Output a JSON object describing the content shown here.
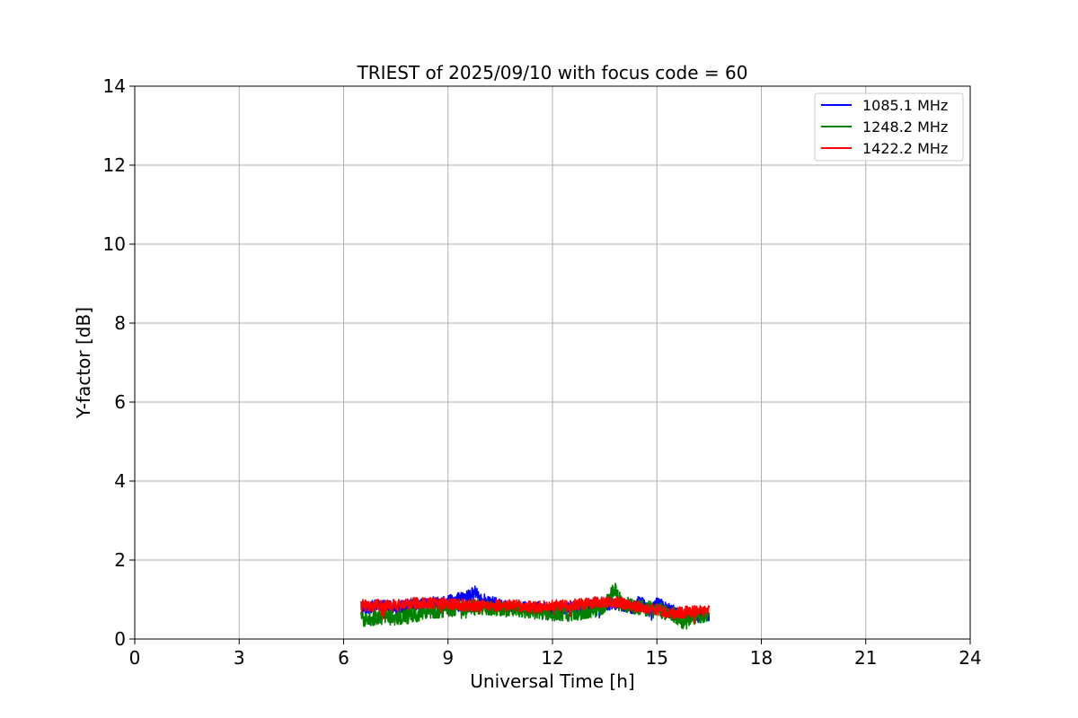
{
  "chart_data": {
    "type": "line",
    "title": "TRIEST of 2025/09/10 with focus code = 60",
    "xlabel": "Universal Time [h]",
    "ylabel": "Y-factor [dB]",
    "xlim": [
      0,
      24
    ],
    "ylim": [
      0,
      14
    ],
    "xticks": [
      0,
      3,
      6,
      9,
      12,
      15,
      18,
      21,
      24
    ],
    "yticks": [
      0,
      2,
      4,
      6,
      8,
      10,
      12,
      14
    ],
    "grid": true,
    "legend_position": "top-right",
    "series": [
      {
        "name": "1085.1 MHz",
        "color": "#0000ff",
        "x": [
          6.5,
          7.0,
          7.5,
          8.0,
          8.5,
          9.0,
          9.5,
          9.8,
          10.0,
          10.5,
          11.0,
          11.5,
          12.0,
          12.5,
          13.0,
          13.5,
          14.0,
          14.3,
          14.5,
          14.8,
          15.0,
          15.5,
          16.0,
          16.5
        ],
        "y": [
          0.75,
          0.85,
          0.8,
          0.85,
          0.9,
          0.95,
          1.05,
          1.2,
          1.0,
          0.85,
          0.8,
          0.8,
          0.75,
          0.8,
          0.85,
          0.9,
          0.85,
          0.75,
          1.0,
          0.7,
          0.9,
          0.7,
          0.6,
          0.55
        ]
      },
      {
        "name": "1248.2 MHz",
        "color": "#008000",
        "x": [
          6.5,
          7.0,
          7.5,
          8.0,
          8.5,
          9.0,
          9.5,
          10.0,
          10.5,
          11.0,
          11.5,
          12.0,
          12.5,
          13.0,
          13.5,
          13.8,
          14.0,
          14.5,
          15.0,
          15.5,
          15.8,
          16.0,
          16.5
        ],
        "y": [
          0.5,
          0.55,
          0.55,
          0.6,
          0.7,
          0.75,
          0.8,
          0.8,
          0.75,
          0.75,
          0.7,
          0.65,
          0.65,
          0.7,
          0.8,
          1.3,
          0.9,
          0.8,
          0.75,
          0.6,
          0.4,
          0.55,
          0.65
        ]
      },
      {
        "name": "1422.2 MHz",
        "color": "#ff0000",
        "x": [
          6.5,
          7.0,
          7.5,
          8.0,
          8.5,
          9.0,
          9.5,
          10.0,
          10.5,
          11.0,
          11.5,
          12.0,
          12.5,
          13.0,
          13.5,
          14.0,
          14.5,
          15.0,
          15.5,
          16.0,
          16.5
        ],
        "y": [
          0.85,
          0.85,
          0.85,
          0.9,
          0.9,
          0.9,
          0.85,
          0.85,
          0.85,
          0.85,
          0.8,
          0.85,
          0.85,
          0.9,
          0.95,
          0.9,
          0.8,
          0.75,
          0.65,
          0.7,
          0.7
        ]
      }
    ]
  }
}
